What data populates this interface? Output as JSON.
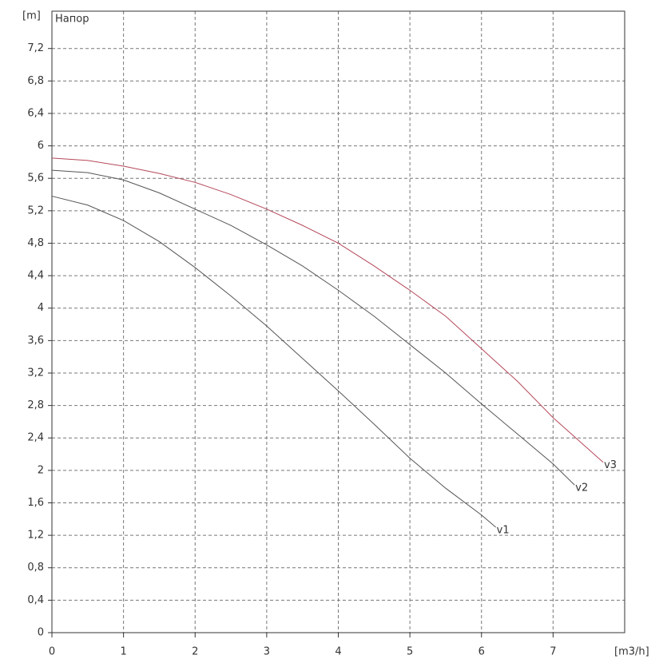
{
  "chart_data": {
    "type": "line",
    "title": "Напор",
    "y_label": "[m]",
    "x_label": "[m3/h]",
    "xlim": [
      0,
      8
    ],
    "ylim": [
      0,
      7.66
    ],
    "xticks": [
      0,
      1,
      2,
      3,
      4,
      5,
      6,
      7
    ],
    "yticks": [
      0,
      {
        "value": 0.4,
        "label": "0,4"
      },
      {
        "value": 0.8,
        "label": "0,8"
      },
      {
        "value": 1.2,
        "label": "1,2"
      },
      {
        "value": 1.6,
        "label": "1,6"
      },
      2,
      {
        "value": 2.4,
        "label": "2,4"
      },
      {
        "value": 2.8,
        "label": "2,8"
      },
      {
        "value": 3.2,
        "label": "3,2"
      },
      {
        "value": 3.6,
        "label": "3,6"
      },
      4,
      {
        "value": 4.4,
        "label": "4,4"
      },
      {
        "value": 4.8,
        "label": "4,8"
      },
      {
        "value": 5.2,
        "label": "5,2"
      },
      {
        "value": 5.6,
        "label": "5,6"
      },
      6,
      {
        "value": 6.4,
        "label": "6,4"
      },
      {
        "value": 6.8,
        "label": "6,8"
      },
      {
        "value": 7.2,
        "label": "7,2"
      }
    ],
    "grid": true,
    "series": [
      {
        "name": "v1",
        "color": "#555555",
        "x": [
          0,
          0.5,
          1,
          1.5,
          2,
          2.5,
          3,
          3.5,
          4,
          4.5,
          5,
          5.5,
          6,
          6.2
        ],
        "values": [
          5.38,
          5.27,
          5.08,
          4.82,
          4.5,
          4.15,
          3.78,
          3.38,
          2.98,
          2.57,
          2.15,
          1.78,
          1.45,
          1.3
        ]
      },
      {
        "name": "v2",
        "color": "#555555",
        "x": [
          0,
          0.5,
          1,
          1.5,
          2,
          2.5,
          3,
          3.5,
          4,
          4.5,
          5,
          5.5,
          6,
          6.5,
          7,
          7.3
        ],
        "values": [
          5.7,
          5.67,
          5.58,
          5.42,
          5.22,
          5.02,
          4.78,
          4.52,
          4.22,
          3.9,
          3.55,
          3.2,
          2.82,
          2.45,
          2.08,
          1.82
        ]
      },
      {
        "name": "v3",
        "color": "#b5485a",
        "x": [
          0,
          0.5,
          1,
          1.5,
          2,
          2.5,
          3,
          3.5,
          4,
          4.5,
          5,
          5.5,
          6,
          6.5,
          7,
          7.7
        ],
        "values": [
          5.85,
          5.82,
          5.75,
          5.66,
          5.55,
          5.4,
          5.22,
          5.02,
          4.8,
          4.52,
          4.22,
          3.9,
          3.5,
          3.1,
          2.65,
          2.1
        ]
      }
    ]
  }
}
